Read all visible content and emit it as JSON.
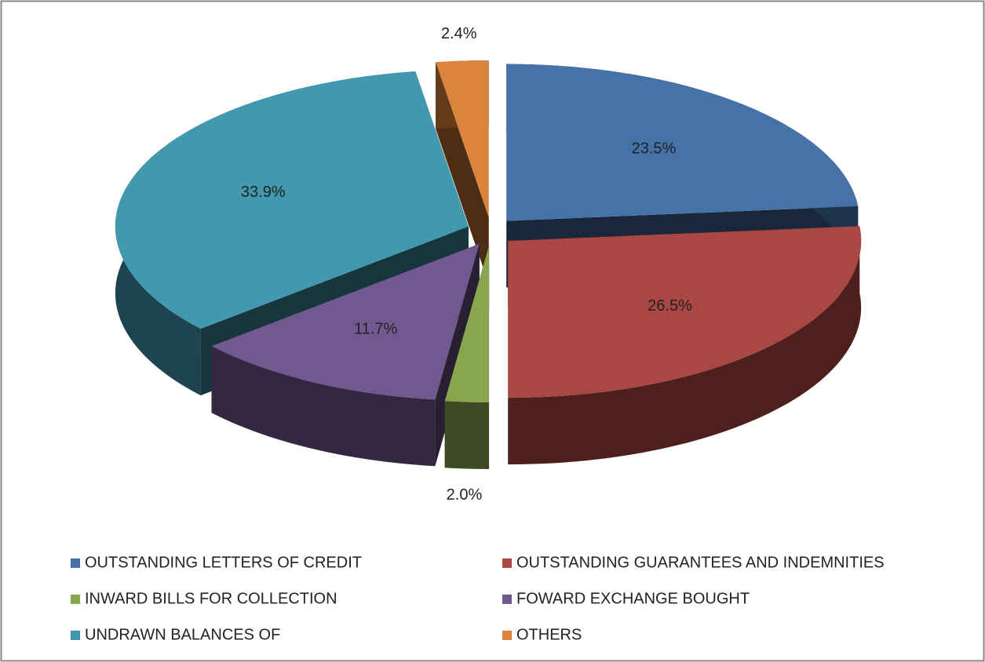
{
  "chart_data": {
    "type": "pie3d",
    "categories": [
      "OUTSTANDING LETTERS OF CREDIT",
      "OUTSTANDING GUARANTEES AND INDEMNITIES",
      "INWARD BILLS FOR COLLECTION",
      "FOWARD EXCHANGE BOUGHT",
      "UNDRAWN BALANCES OF",
      "OTHERS"
    ],
    "values": [
      23.5,
      26.5,
      2.0,
      11.7,
      33.9,
      2.4
    ],
    "value_labels": [
      "23.5%",
      "26.5%",
      "2.0%",
      "11.7%",
      "33.9%",
      "2.4%"
    ],
    "colors": [
      "#4572a7",
      "#aa4643",
      "#89a54e",
      "#71588f",
      "#4198af",
      "#db843d"
    ],
    "legend": "bottom"
  }
}
